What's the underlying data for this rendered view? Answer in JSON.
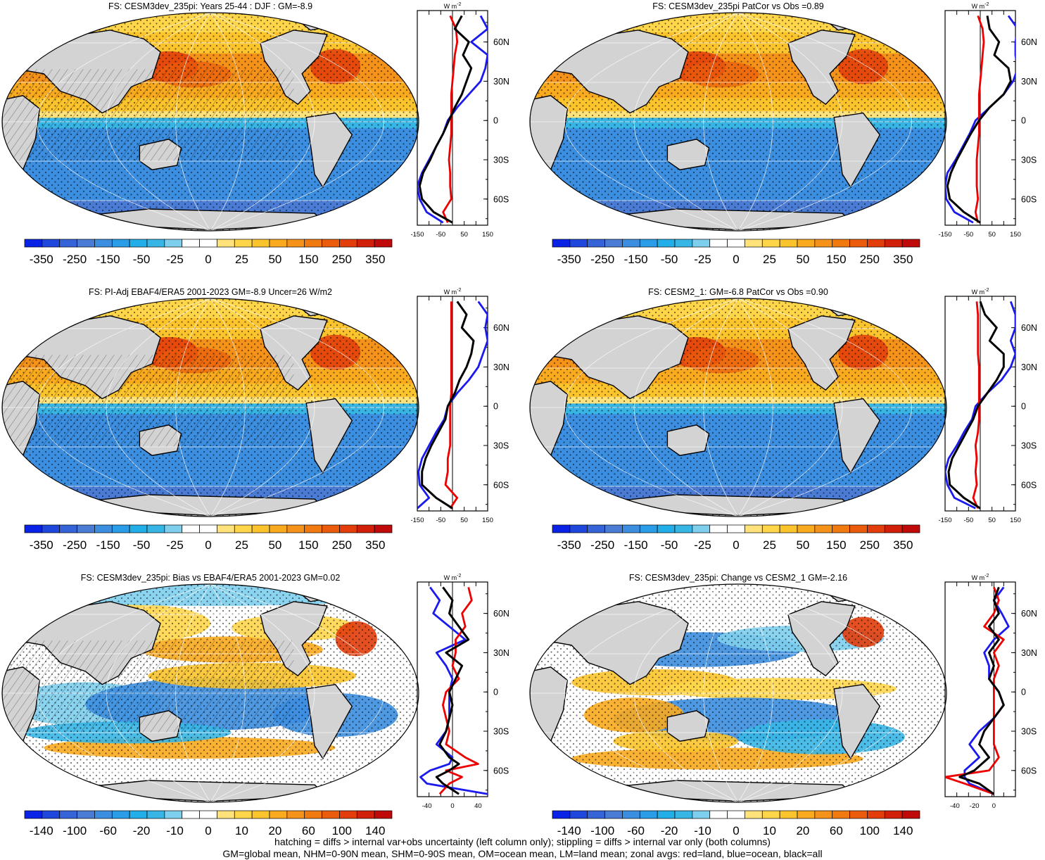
{
  "figure": {
    "footer_lines": [
      "hatching = diffs > internal var+obs uncertainty (left column only); stippling = diffs > internal var only (both columns)",
      "GM=global mean, NHM=0-90N mean, SHM=0-90S mean, OM=ocean mean, LM=land mean; zonal avgs: red=land, blue=ocean, black=all"
    ],
    "zonal_unit": "W m",
    "zonal_unit_exp": "-2",
    "lat_labels": [
      "60N",
      "30N",
      "0",
      "30S",
      "60S"
    ],
    "colors": {
      "land": "#d3d3d3",
      "zonal_land": "#ee0000",
      "zonal_ocean": "#1a1aee",
      "zonal_all": "#000000"
    },
    "colorbar_palette": [
      "#0a22e6",
      "#1e47de",
      "#3464d8",
      "#4a7cd6",
      "#3c8ee0",
      "#2b9de8",
      "#22aee8",
      "#37b6e6",
      "#7ecfee",
      "#ffffff",
      "#ffffff",
      "#ffe27a",
      "#ffd64a",
      "#fcc42c",
      "#f9aa1e",
      "#f5921a",
      "#f07a10",
      "#ea5c0c",
      "#e23d0a",
      "#d21f0a",
      "#c00a0a"
    ]
  },
  "chart_data": [
    {
      "type": "heatmap",
      "title": "FS: CESM3dev_235pi: Years 25-44 : DJF : GM=-8.9",
      "colorbar_labels": [
        "-350",
        "-250",
        "-150",
        "-50",
        "-25",
        "0",
        "25",
        "50",
        "150",
        "250",
        "350"
      ],
      "hatching": true,
      "zonal_mean": {
        "xlim": [
          -150,
          150
        ],
        "xticks": [
          "-150",
          "-50",
          "50",
          "150"
        ],
        "lat": [
          80,
          70,
          60,
          50,
          40,
          30,
          20,
          10,
          0,
          -10,
          -20,
          -30,
          -40,
          -50,
          -60,
          -70,
          -78
        ],
        "all": [
          40,
          10,
          70,
          45,
          80,
          60,
          40,
          10,
          -15,
          -40,
          -70,
          -95,
          -125,
          -140,
          -130,
          -80,
          0
        ],
        "ocean": [
          120,
          150,
          80,
          150,
          140,
          120,
          70,
          20,
          -20,
          -40,
          -70,
          -100,
          -130,
          -150,
          -140,
          -110,
          -40
        ],
        "land": [
          -10,
          15,
          20,
          10,
          5,
          0,
          -5,
          -5,
          -5,
          -5,
          -10,
          -15,
          -10,
          -10,
          -5,
          -40,
          -20
        ]
      }
    },
    {
      "type": "heatmap",
      "title": "FS: CESM3dev_235pi PatCor vs Obs =0.89",
      "colorbar_labels": [
        "-350",
        "-250",
        "-150",
        "-50",
        "-25",
        "0",
        "25",
        "50",
        "150",
        "250",
        "350"
      ],
      "hatching": false,
      "zonal_mean": {
        "xlim": [
          -150,
          150
        ],
        "xticks": [
          "-150",
          "-50",
          "50",
          "150"
        ],
        "lat": [
          80,
          70,
          60,
          50,
          40,
          30,
          20,
          10,
          0,
          -10,
          -20,
          -30,
          -40,
          -50,
          -60,
          -70,
          -78
        ],
        "all": [
          30,
          40,
          80,
          60,
          120,
          130,
          100,
          40,
          -5,
          -40,
          -70,
          -100,
          -125,
          -140,
          -130,
          -70,
          0
        ],
        "ocean": [
          120,
          160,
          150,
          150,
          160,
          140,
          100,
          40,
          -20,
          -45,
          -75,
          -105,
          -140,
          -150,
          -145,
          -110,
          -30
        ],
        "land": [
          -10,
          10,
          15,
          10,
          5,
          0,
          -5,
          -5,
          -5,
          -5,
          -10,
          -15,
          -15,
          -15,
          -10,
          -20,
          -10
        ]
      }
    },
    {
      "type": "heatmap",
      "title": "FS: PI-Adj EBAF4/ERA5 2001-2023 GM=-8.9 Uncer=26 W/m2",
      "colorbar_labels": [
        "-350",
        "-250",
        "-150",
        "-50",
        "-25",
        "0",
        "25",
        "50",
        "150",
        "250",
        "350"
      ],
      "hatching": true,
      "zonal_mean": {
        "xlim": [
          -150,
          150
        ],
        "xticks": [
          "-150",
          "-50",
          "50",
          "150"
        ],
        "lat": [
          80,
          70,
          60,
          50,
          40,
          30,
          20,
          10,
          0,
          -10,
          -20,
          -30,
          -40,
          -50,
          -60,
          -70,
          -78
        ],
        "all": [
          20,
          60,
          40,
          90,
          80,
          60,
          30,
          10,
          -20,
          -30,
          -60,
          -90,
          -115,
          -130,
          -130,
          -70,
          0
        ],
        "ocean": [
          110,
          150,
          140,
          150,
          130,
          110,
          70,
          20,
          -20,
          -35,
          -70,
          -100,
          -130,
          -145,
          -140,
          -100,
          -150
        ],
        "land": [
          -5,
          -5,
          -5,
          -5,
          -5,
          -5,
          -5,
          -5,
          -10,
          -10,
          -10,
          -10,
          -20,
          -20,
          -30,
          20,
          -10
        ]
      }
    },
    {
      "type": "heatmap",
      "title": "FS: CESM2_1: GM=-6.8 PatCor vs Obs =0.90",
      "colorbar_labels": [
        "-350",
        "-250",
        "-150",
        "-50",
        "-25",
        "0",
        "25",
        "50",
        "150",
        "250",
        "350"
      ],
      "hatching": false,
      "zonal_mean": {
        "xlim": [
          -150,
          150
        ],
        "xticks": [
          "-150",
          "-50",
          "50",
          "150"
        ],
        "lat": [
          80,
          70,
          60,
          50,
          40,
          30,
          20,
          10,
          0,
          -10,
          -20,
          -30,
          -40,
          -50,
          -60,
          -70,
          -78
        ],
        "all": [
          0,
          20,
          70,
          40,
          100,
          100,
          70,
          30,
          -10,
          -30,
          -60,
          -90,
          -120,
          -135,
          -130,
          -70,
          0
        ],
        "ocean": [
          130,
          150,
          150,
          130,
          150,
          130,
          90,
          30,
          -20,
          -35,
          -70,
          -100,
          -135,
          -150,
          -140,
          -110,
          -20
        ],
        "land": [
          -15,
          -10,
          -10,
          -10,
          -10,
          -5,
          -5,
          -5,
          -5,
          -5,
          -10,
          -20,
          -15,
          -20,
          -15,
          -30,
          -10
        ]
      }
    },
    {
      "type": "heatmap",
      "title": "FS: CESM3dev_235pi: Bias vs EBAF4/ERA5 2001-2023 GM=0.02",
      "colorbar_labels": [
        "-140",
        "-100",
        "-60",
        "-20",
        "-10",
        "0",
        "10",
        "20",
        "60",
        "100",
        "140"
      ],
      "hatching": true,
      "zonal_mean": {
        "xlim": [
          -55,
          55
        ],
        "xticks": [
          "-40",
          "0",
          "40"
        ],
        "lat": [
          80,
          70,
          60,
          50,
          40,
          30,
          20,
          10,
          0,
          -10,
          -20,
          -30,
          -40,
          -50,
          -55,
          -60,
          -65,
          -70,
          -78
        ],
        "all": [
          -15,
          0,
          -5,
          10,
          25,
          -10,
          15,
          5,
          -5,
          0,
          -5,
          -10,
          -20,
          -5,
          10,
          -5,
          -25,
          -15,
          10
        ],
        "ocean": [
          -35,
          -20,
          -30,
          -5,
          20,
          -25,
          -10,
          0,
          -5,
          -5,
          -5,
          -10,
          -25,
          0,
          -5,
          -35,
          -50,
          -40,
          55
        ],
        "land": [
          25,
          30,
          15,
          20,
          5,
          5,
          0,
          10,
          -10,
          -15,
          -10,
          -5,
          -10,
          20,
          40,
          -10,
          15,
          -5,
          -20
        ]
      }
    },
    {
      "type": "heatmap",
      "title": "FS: CESM3dev_235pi: Change vs CESM2_1 GM=-2.16",
      "colorbar_labels": [
        "-140",
        "-100",
        "-60",
        "-20",
        "-10",
        "0",
        "10",
        "20",
        "60",
        "100",
        "140"
      ],
      "hatching": false,
      "zonal_mean": {
        "xlim": [
          -50,
          22
        ],
        "xticks": [
          "-40",
          "-20",
          "0"
        ],
        "lat": [
          80,
          70,
          60,
          50,
          40,
          30,
          20,
          10,
          0,
          -10,
          -20,
          -30,
          -40,
          -50,
          -60,
          -65,
          -70,
          -78
        ],
        "all": [
          5,
          0,
          5,
          -5,
          5,
          -5,
          0,
          -5,
          5,
          10,
          0,
          -10,
          -15,
          -5,
          -20,
          -35,
          -15,
          0
        ],
        "ocean": [
          10,
          0,
          8,
          15,
          0,
          -10,
          -5,
          -5,
          5,
          10,
          0,
          -15,
          -25,
          -15,
          -30,
          -30,
          -25,
          0
        ],
        "land": [
          0,
          5,
          0,
          -10,
          10,
          0,
          5,
          0,
          0,
          0,
          0,
          0,
          0,
          5,
          -5,
          -50,
          -30,
          0
        ]
      }
    }
  ]
}
